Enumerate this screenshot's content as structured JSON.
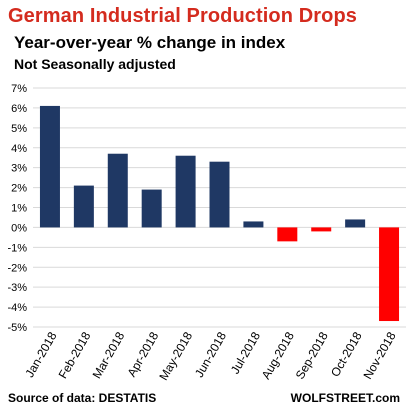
{
  "header": {
    "title": "German Industrial Production Drops",
    "subtitle": "Year-over-year % change in index",
    "note": "Not Seasonally adjusted"
  },
  "footer": {
    "source": "Source of data: DESTATIS",
    "brand": "WOLFSTREET.com"
  },
  "colors": {
    "positive": "#1f3864",
    "negative": "#ff0000",
    "title": "#d42b1e",
    "grid": "#d9d9d9"
  },
  "chart_data": {
    "type": "bar",
    "title": "German Industrial Production Drops",
    "subtitle": "Year-over-year % change in index",
    "categories": [
      "Jan-2018",
      "Feb-2018",
      "Mar-2018",
      "Apr-2018",
      "May-2018",
      "Jun-2018",
      "Jul-2018",
      "Aug-2018",
      "Sep-2018",
      "Oct-2018",
      "Nov-2018"
    ],
    "values": [
      6.1,
      2.1,
      3.7,
      1.9,
      3.6,
      3.3,
      0.3,
      -0.7,
      -0.2,
      0.4,
      -4.7
    ],
    "yticks": [
      "7%",
      "6%",
      "5%",
      "4%",
      "3%",
      "2%",
      "1%",
      "0%",
      "-1%",
      "-2%",
      "-3%",
      "-4%",
      "-5%"
    ],
    "ylim": [
      -5,
      7
    ],
    "grid": true,
    "legend": "none"
  }
}
